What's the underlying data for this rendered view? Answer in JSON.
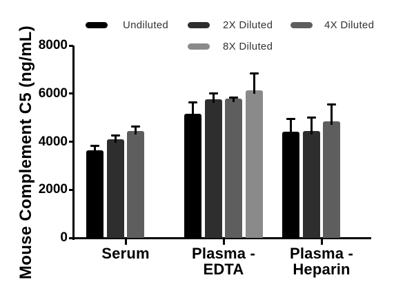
{
  "figure": {
    "background": "#ffffff"
  },
  "legend": {
    "position": "top",
    "items": [
      {
        "label": "Undiluted",
        "color": "#000000"
      },
      {
        "label": "2X Diluted",
        "color": "#2e2e2e"
      },
      {
        "label": "4X Diluted",
        "color": "#5e5e5e"
      },
      {
        "label": "8X Diluted",
        "color": "#8a8a8a"
      }
    ]
  },
  "chart_data": {
    "type": "bar",
    "title": "",
    "xlabel": "",
    "ylabel": "Mouse Complement C5 (ng/mL)",
    "ylim": [
      0,
      8000
    ],
    "yticks": [
      0,
      2000,
      4000,
      6000,
      8000
    ],
    "grid": false,
    "legend_position": "top",
    "error_bar_direction": "up",
    "categories": [
      "Serum",
      "Plasma - EDTA",
      "Plasma - Heparin"
    ],
    "category_label_lines": [
      [
        "Serum"
      ],
      [
        "Plasma -",
        "EDTA"
      ],
      [
        "Plasma -",
        "Heparin"
      ]
    ],
    "series": [
      {
        "name": "Undiluted",
        "color": "#000000",
        "values": [
          3650,
          5170,
          4430
        ],
        "errors": [
          230,
          500,
          550
        ]
      },
      {
        "name": "2X Diluted",
        "color": "#2e2e2e",
        "values": [
          4100,
          5760,
          4450
        ],
        "errors": [
          200,
          290,
          600
        ]
      },
      {
        "name": "4X Diluted",
        "color": "#5e5e5e",
        "values": [
          4450,
          5780,
          4860
        ],
        "errors": [
          210,
          90,
          730
        ]
      },
      {
        "name": "8X Diluted",
        "color": "#8a8a8a",
        "values": [
          null,
          6140,
          null
        ],
        "errors": [
          null,
          740,
          null
        ]
      }
    ]
  }
}
